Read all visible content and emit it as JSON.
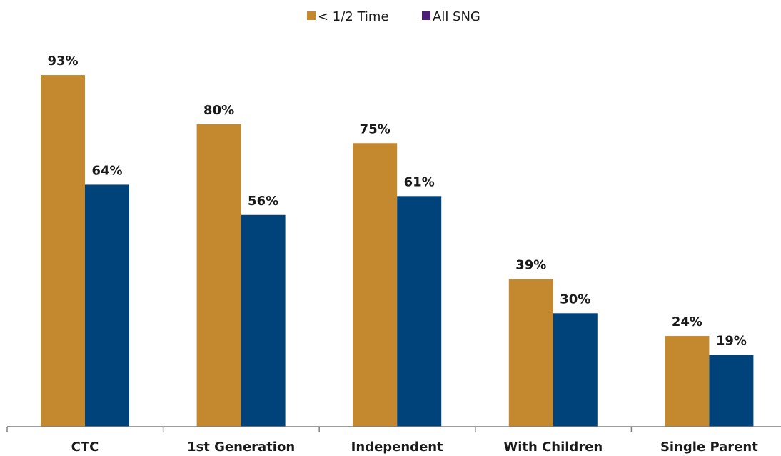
{
  "chart_data": {
    "type": "bar",
    "title": "",
    "xlabel": "",
    "ylabel": "",
    "ylim": [
      0,
      100
    ],
    "grid": false,
    "legend_position": "top-center",
    "categories": [
      "CTC",
      "1st Generation",
      "Independent",
      "With Children",
      "Single Parent"
    ],
    "series": [
      {
        "name": "< 1/2 Time",
        "color": "#C4892E",
        "values": [
          93,
          80,
          75,
          39,
          24
        ],
        "labels": [
          "93%",
          "80%",
          "75%",
          "39%",
          "24%"
        ]
      },
      {
        "name": "All SNG",
        "color": "#00427A",
        "legend_color": "#4B1E7A",
        "values": [
          64,
          56,
          61,
          30,
          19
        ],
        "labels": [
          "64%",
          "56%",
          "61%",
          "30%",
          "19%"
        ]
      }
    ],
    "axis_color": "#7f7f7f"
  }
}
